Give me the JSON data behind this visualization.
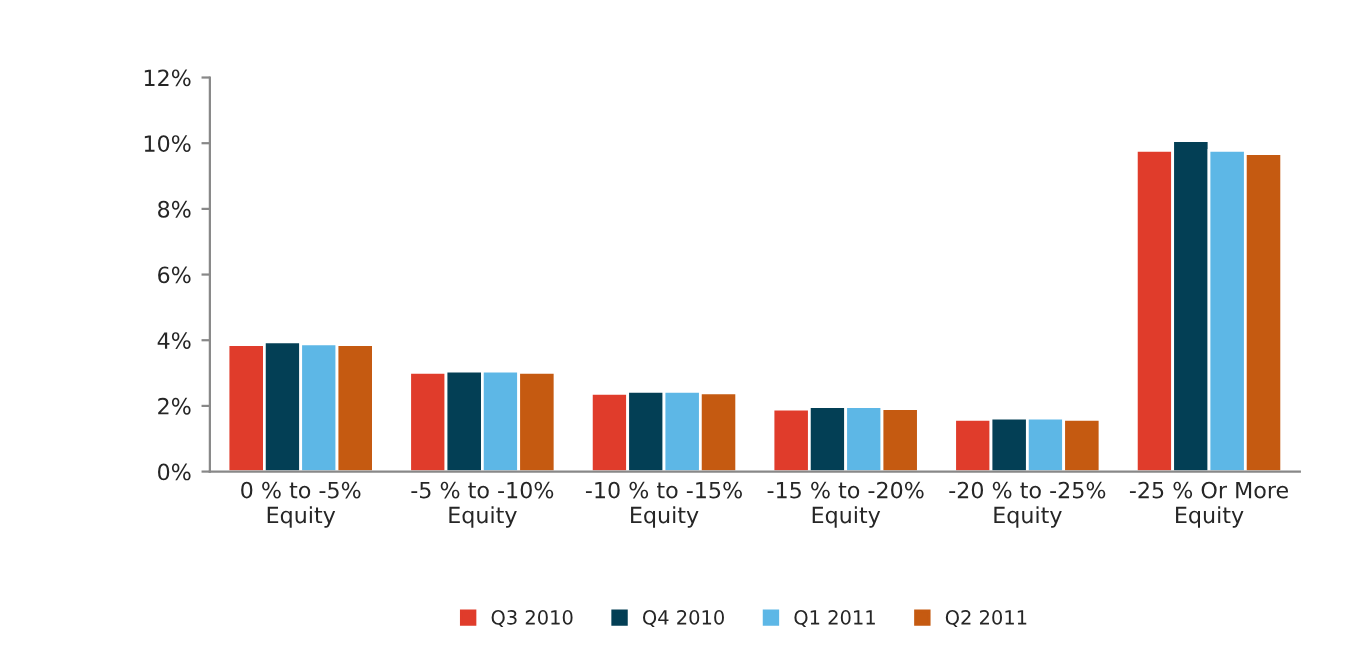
{
  "chart_data": {
    "type": "bar",
    "categories": [
      "0 % to -5%\nEquity",
      "-5 % to -10%\nEquity",
      "-10 % to -15%\nEquity",
      "-15 % to -20%\nEquity",
      "-20 % to -25%\nEquity",
      "-25 % Or More\nEquity"
    ],
    "series": [
      {
        "name": "Q3 2010",
        "color": "#e03c2b",
        "values": [
          3.87,
          3.02,
          2.38,
          1.9,
          1.59,
          9.78
        ]
      },
      {
        "name": "Q4 2010",
        "color": "#033f55",
        "values": [
          3.95,
          3.06,
          2.44,
          1.98,
          1.63,
          10.08
        ]
      },
      {
        "name": "Q1 2011",
        "color": "#5db7e6",
        "values": [
          3.89,
          3.06,
          2.44,
          1.98,
          1.63,
          9.78
        ]
      },
      {
        "name": "Q2 2011",
        "color": "#c55a11",
        "values": [
          3.87,
          3.02,
          2.4,
          1.92,
          1.59,
          9.68
        ]
      }
    ],
    "ylim": [
      0,
      12
    ],
    "yticks": [
      {
        "value": 0,
        "label": "0%"
      },
      {
        "value": 2,
        "label": "2%"
      },
      {
        "value": 4,
        "label": "4%"
      },
      {
        "value": 6,
        "label": "6%"
      },
      {
        "value": 8,
        "label": "8%"
      },
      {
        "value": 10,
        "label": "10%"
      },
      {
        "value": 12,
        "label": "12%"
      }
    ],
    "grid": false,
    "legend": "bottom"
  }
}
